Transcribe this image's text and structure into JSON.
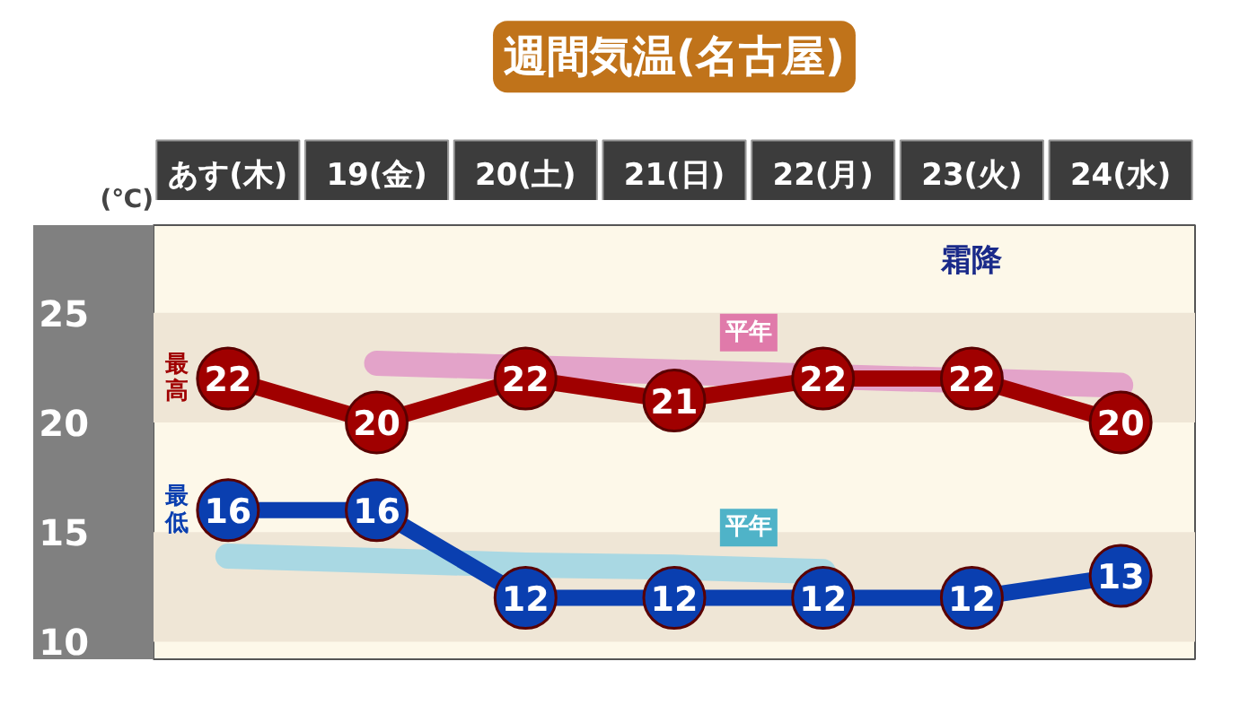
{
  "chart_data": {
    "type": "line",
    "title": "週間気温(名古屋)",
    "ylabel": "(℃)",
    "categories": [
      "あす(木)",
      "19(金)",
      "20(土)",
      "21(日)",
      "22(月)",
      "23(火)",
      "24(水)"
    ],
    "ylim": [
      9.2,
      29
    ],
    "yticks": [
      10,
      15,
      20,
      25
    ],
    "grid": false,
    "series": [
      {
        "name": "平年",
        "color": "#e3a3c9",
        "marker": "none",
        "values": [
          null,
          22.7,
          22.5,
          22.3,
          22.1,
          21.9,
          21.7
        ]
      },
      {
        "name": "平年",
        "color": "#a9d8e3",
        "marker": "none",
        "values": [
          13.9,
          13.7,
          13.5,
          13.4,
          13.2,
          null,
          null
        ]
      },
      {
        "name": "最高",
        "color": "#a00000",
        "marker": "circle",
        "values": [
          22,
          20,
          22,
          21,
          22,
          22,
          20
        ],
        "value_labels": [
          "22",
          "20",
          "22",
          "21",
          "22",
          "22",
          "20"
        ]
      },
      {
        "name": "最低",
        "color": "#0a3fb0",
        "marker": "circle",
        "values": [
          16,
          16,
          12,
          12,
          12,
          12,
          13
        ],
        "value_labels": [
          "16",
          "16",
          "12",
          "12",
          "12",
          "12",
          "13"
        ]
      }
    ],
    "bands": [
      {
        "axis": "y",
        "from": 20,
        "to": 25,
        "color": "#efe6d6"
      },
      {
        "axis": "y",
        "from": 10,
        "to": 15,
        "color": "#efe6d6"
      }
    ],
    "annotations": [
      "霜降"
    ]
  }
}
